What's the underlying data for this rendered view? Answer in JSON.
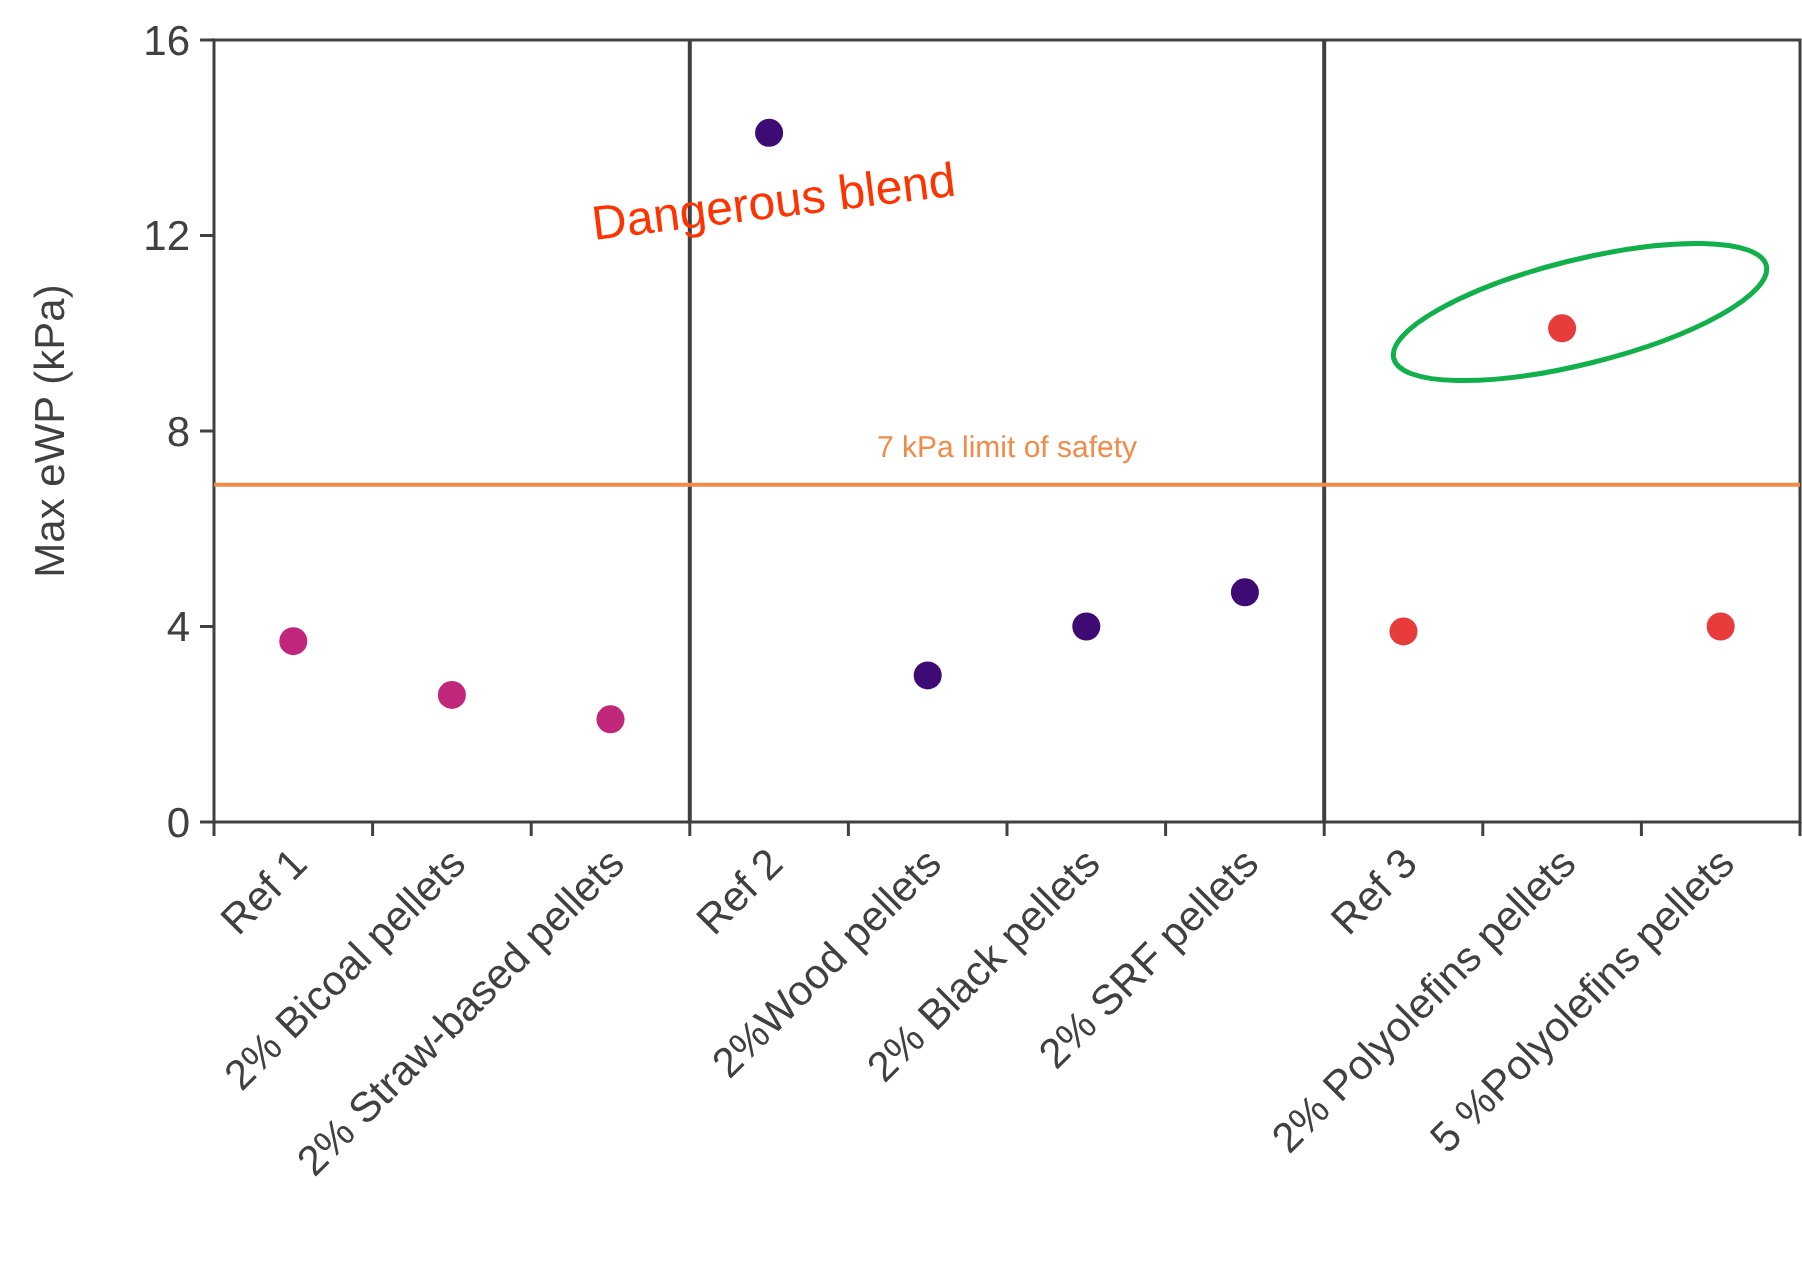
{
  "chart_data": {
    "type": "scatter",
    "ylabel": "Max eWP (kPa)",
    "categories": [
      "Ref 1",
      "2% Bicoal pellets",
      "2% Straw-based pellets",
      "Ref 2",
      "2%Wood pellets",
      "2% Black pellets",
      "2% SRF pellets",
      "Ref 3",
      "2% Polyolefins pellets",
      "5 %Polyolefins pellets"
    ],
    "series": [
      {
        "color": "#c0277a",
        "values": [
          3.7,
          2.6,
          2.1,
          null,
          null,
          null,
          null,
          null,
          null,
          null
        ]
      },
      {
        "color": "#3d0b73",
        "values": [
          null,
          null,
          null,
          14.1,
          3.0,
          4.0,
          4.7,
          null,
          null,
          null
        ]
      },
      {
        "color": "#e83c3c",
        "values": [
          null,
          null,
          null,
          null,
          null,
          null,
          null,
          3.9,
          10.1,
          4.0
        ]
      }
    ],
    "ylim": [
      0,
      16
    ],
    "yticks": [
      0,
      4,
      8,
      12,
      16
    ],
    "grid": false,
    "marker": "circle",
    "ref_lines": [
      {
        "axis": "y",
        "value": 6.9,
        "label": "7 kPa limit of safety",
        "color": "#f28a48"
      }
    ],
    "annotations": [
      "Dangerous blend"
    ]
  }
}
